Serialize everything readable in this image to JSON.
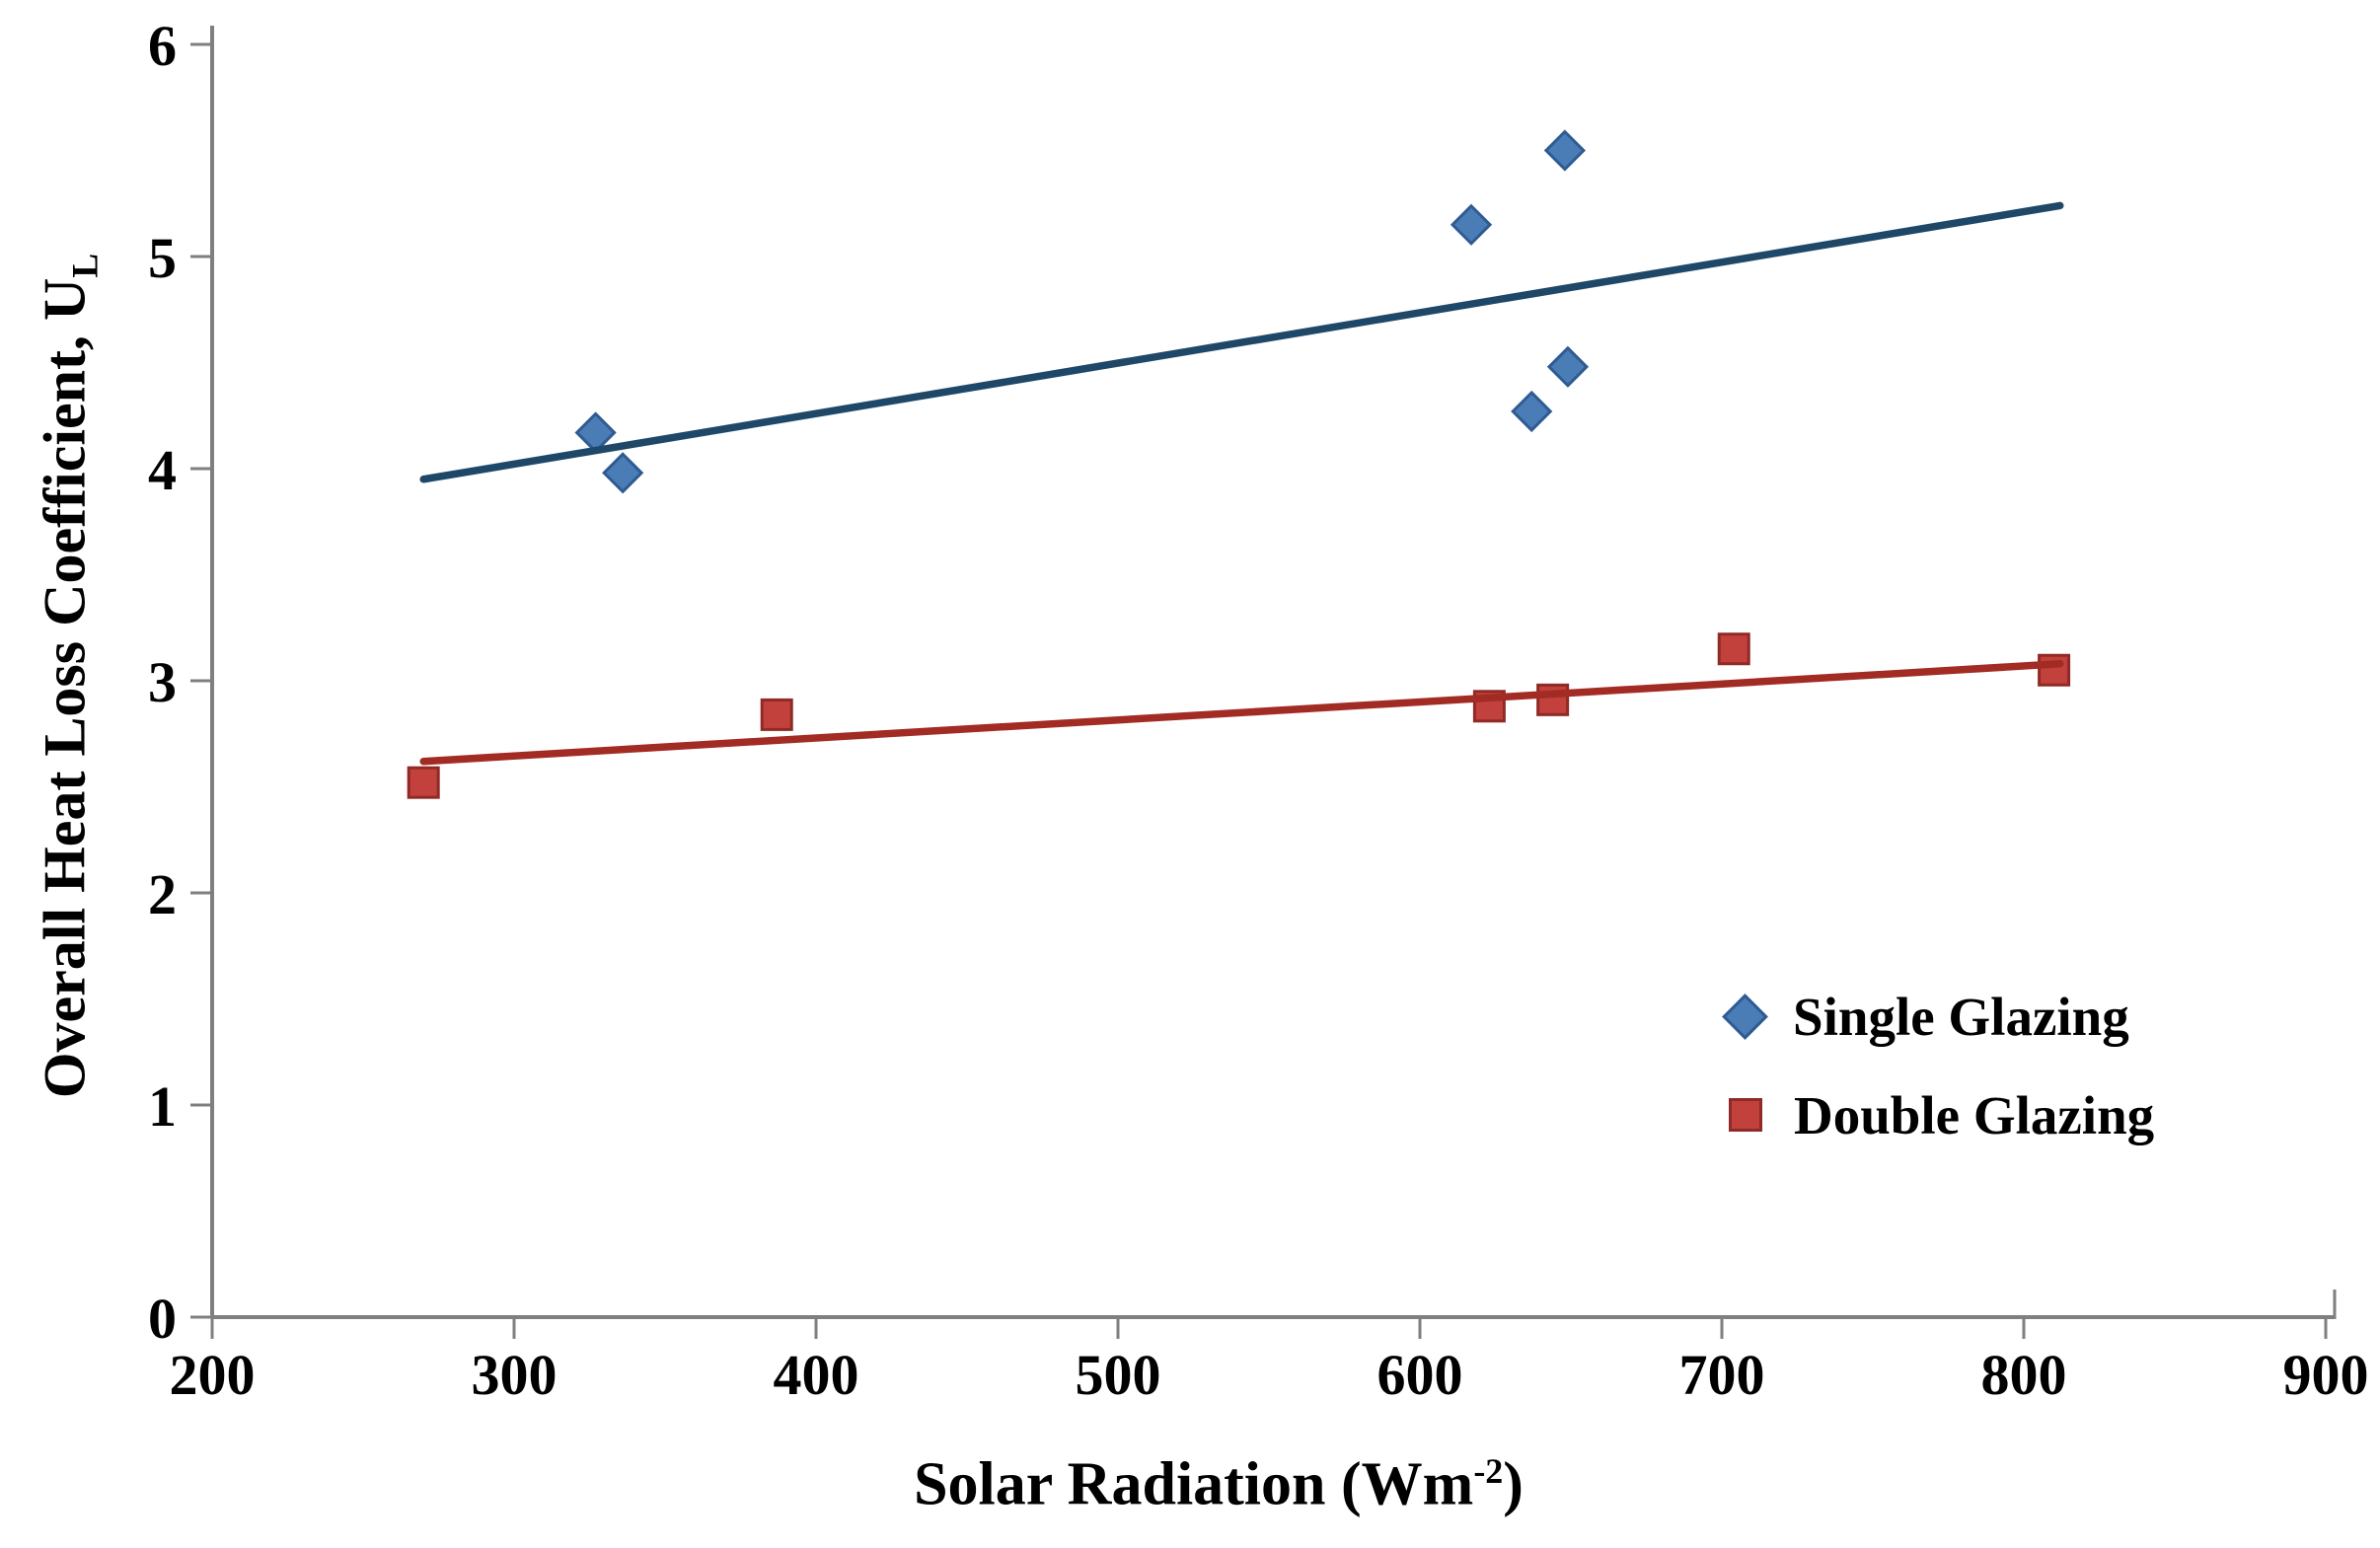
{
  "figure": {
    "x_title": {
      "prefix": "Solar Radiation (Wm",
      "sup": "-2",
      "suffix": ")"
    },
    "y_title": {
      "main": "Overall Heat Loss Coefficient, U",
      "sub": "L"
    }
  },
  "chart_data": {
    "type": "scatter",
    "title": "",
    "xlabel": "Solar Radiation (Wm^-2)",
    "ylabel": "Overall Heat Loss Coefficient, U_L",
    "grid": false,
    "legend_position": "right-middle",
    "axis_color": "#7F7F7F",
    "text_color": "#000000",
    "x_axis": {
      "min": 200,
      "max": 900,
      "tick_step": 100,
      "ticks": [
        200,
        300,
        400,
        500,
        600,
        700,
        800,
        900
      ]
    },
    "y_axis": {
      "min": 0,
      "max": 6,
      "tick_step": 1,
      "ticks": [
        0,
        1,
        2,
        3,
        4,
        5,
        6
      ]
    },
    "series": [
      {
        "name": "Single Glazing",
        "marker": "diamond",
        "marker_fill": "#4A7CB5",
        "marker_stroke": "#2F5B93",
        "trend_color": "#1F4868",
        "points": [
          [
            327,
            4.17
          ],
          [
            336,
            3.98
          ],
          [
            617,
            5.15
          ],
          [
            648,
            5.5
          ],
          [
            637,
            4.27
          ],
          [
            649,
            4.48
          ]
        ],
        "trendline": {
          "x1": 270,
          "y1": 3.95,
          "x2": 812,
          "y2": 5.24
        }
      },
      {
        "name": "Double Glazing",
        "marker": "square",
        "marker_fill": "#C2413C",
        "marker_stroke": "#8F2A26",
        "trend_color": "#A22B24",
        "points": [
          [
            270,
            2.52
          ],
          [
            387,
            2.84
          ],
          [
            623,
            2.88
          ],
          [
            644,
            2.91
          ],
          [
            704,
            3.15
          ],
          [
            810,
            3.05
          ]
        ],
        "trendline": {
          "x1": 270,
          "y1": 2.62,
          "x2": 812,
          "y2": 3.08
        }
      }
    ]
  }
}
